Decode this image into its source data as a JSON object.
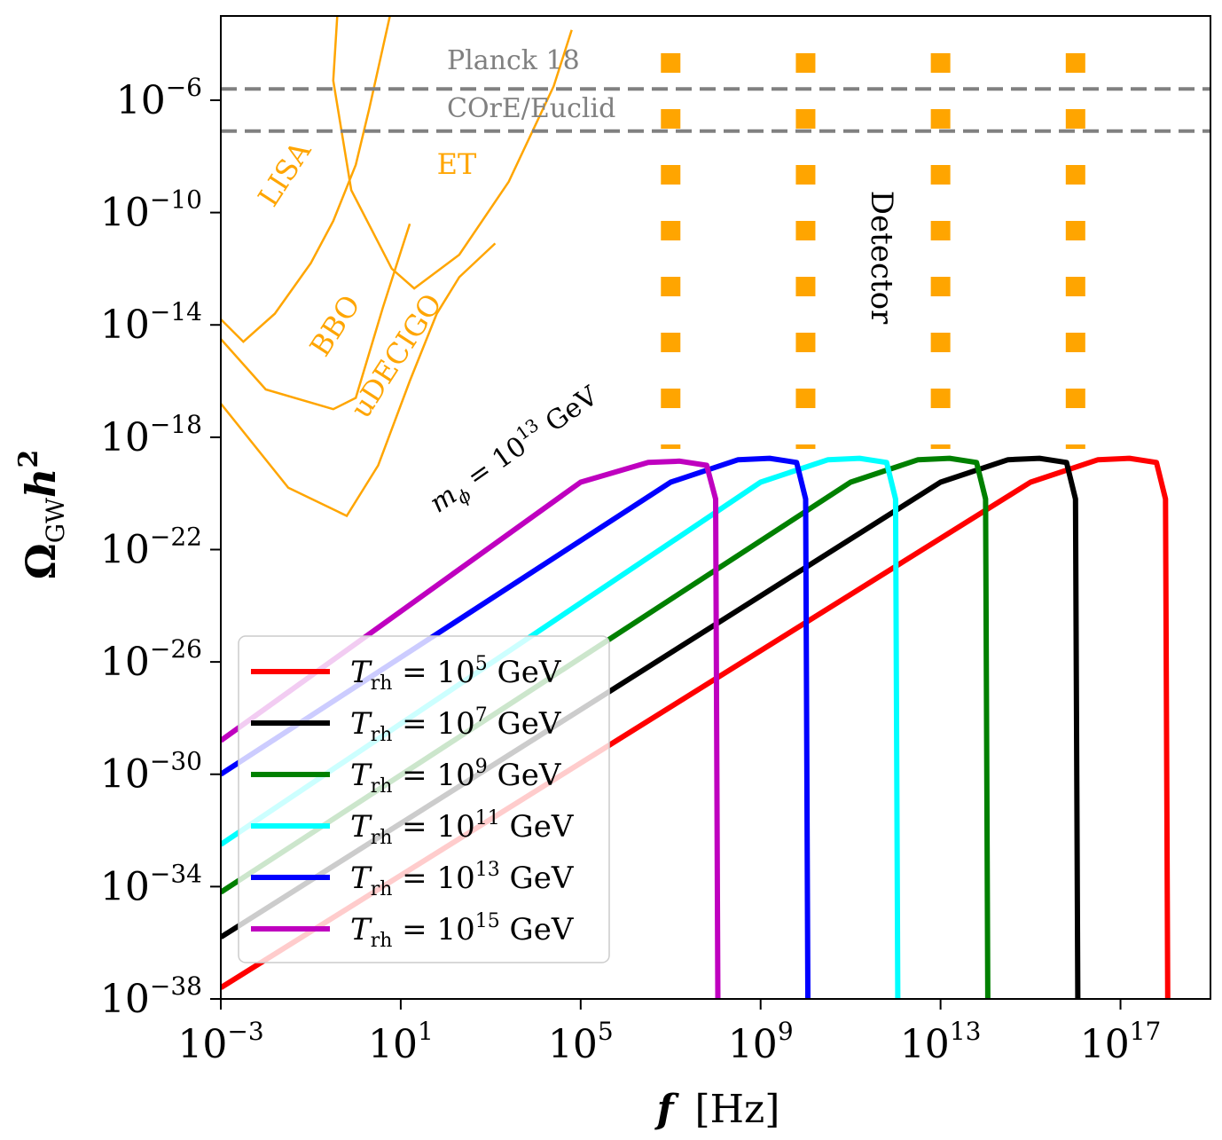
{
  "chart_data": {
    "type": "line",
    "xlabel_main": "f",
    "xlabel_unit": "[Hz]",
    "ylabel_main": "Ω",
    "ylabel_sub": "GW",
    "ylabel_tail": "h",
    "ylabel_sup": "2",
    "x_scale": "log",
    "y_scale": "log",
    "xlim_log10": [
      -3,
      19
    ],
    "ylim_log10": [
      -38,
      -3
    ],
    "x_ticks": [
      {
        "base": "10",
        "exp": "−3",
        "log10": -3
      },
      {
        "base": "10",
        "exp": "1",
        "log10": 1
      },
      {
        "base": "10",
        "exp": "5",
        "log10": 5
      },
      {
        "base": "10",
        "exp": "9",
        "log10": 9
      },
      {
        "base": "10",
        "exp": "13",
        "log10": 13
      },
      {
        "base": "10",
        "exp": "17",
        "log10": 17
      }
    ],
    "y_ticks": [
      {
        "base": "10",
        "exp": "−6",
        "log10": -6
      },
      {
        "base": "10",
        "exp": "−10",
        "log10": -10
      },
      {
        "base": "10",
        "exp": "−14",
        "log10": -14
      },
      {
        "base": "10",
        "exp": "−18",
        "log10": -18
      },
      {
        "base": "10",
        "exp": "−22",
        "log10": -22
      },
      {
        "base": "10",
        "exp": "−26",
        "log10": -26
      },
      {
        "base": "10",
        "exp": "−30",
        "log10": -30
      },
      {
        "base": "10",
        "exp": "−34",
        "log10": -34
      },
      {
        "base": "10",
        "exp": "−38",
        "log10": -38
      }
    ],
    "legend_location": "lower-left",
    "series": [
      {
        "name_T": "T",
        "name_sub": "rh",
        "name_eq": " = 10",
        "name_exp": "5",
        "name_unit": " GeV",
        "color": "#ff0000",
        "points": [
          [
            -3,
            -37.6
          ],
          [
            15.0,
            -19.6
          ],
          [
            16.5,
            -18.8
          ],
          [
            17.2,
            -18.75
          ],
          [
            17.8,
            -18.9
          ],
          [
            18.0,
            -20.2
          ],
          [
            18.05,
            -38.0
          ]
        ]
      },
      {
        "name_T": "T",
        "name_sub": "rh",
        "name_eq": " = 10",
        "name_exp": "7",
        "name_unit": " GeV",
        "color": "#000000",
        "points": [
          [
            -3,
            -35.8
          ],
          [
            13.0,
            -19.6
          ],
          [
            14.5,
            -18.8
          ],
          [
            15.2,
            -18.75
          ],
          [
            15.8,
            -18.9
          ],
          [
            16.0,
            -20.2
          ],
          [
            16.05,
            -38.0
          ]
        ]
      },
      {
        "name_T": "T",
        "name_sub": "rh",
        "name_eq": " = 10",
        "name_exp": "9",
        "name_unit": " GeV",
        "color": "#008000",
        "points": [
          [
            -3,
            -34.2
          ],
          [
            11.0,
            -19.6
          ],
          [
            12.5,
            -18.8
          ],
          [
            13.2,
            -18.75
          ],
          [
            13.8,
            -18.9
          ],
          [
            14.0,
            -20.2
          ],
          [
            14.05,
            -38.0
          ]
        ]
      },
      {
        "name_T": "T",
        "name_sub": "rh",
        "name_eq": " = 10",
        "name_exp": "11",
        "name_unit": " GeV",
        "color": "#00ffff",
        "points": [
          [
            -3,
            -32.5
          ],
          [
            9.0,
            -19.6
          ],
          [
            10.5,
            -18.8
          ],
          [
            11.2,
            -18.75
          ],
          [
            11.8,
            -18.9
          ],
          [
            12.0,
            -20.2
          ],
          [
            12.05,
            -38.0
          ]
        ]
      },
      {
        "name_T": "T",
        "name_sub": "rh",
        "name_eq": " = 10",
        "name_exp": "13",
        "name_unit": " GeV",
        "color": "#0000ff",
        "points": [
          [
            -3,
            -30.0
          ],
          [
            7.0,
            -19.6
          ],
          [
            8.5,
            -18.8
          ],
          [
            9.2,
            -18.75
          ],
          [
            9.8,
            -18.9
          ],
          [
            10.0,
            -20.2
          ],
          [
            10.05,
            -38.0
          ]
        ]
      },
      {
        "name_T": "T",
        "name_sub": "rh",
        "name_eq": " = 10",
        "name_exp": "15",
        "name_unit": " GeV",
        "color": "#bf00bf",
        "points": [
          [
            -3,
            -28.8
          ],
          [
            5.0,
            -19.6
          ],
          [
            6.5,
            -18.9
          ],
          [
            7.2,
            -18.85
          ],
          [
            7.8,
            -19.0
          ],
          [
            8.0,
            -20.2
          ],
          [
            8.05,
            -38.0
          ]
        ]
      }
    ],
    "reference_lines": [
      {
        "label": "Planck 18",
        "y_log10": -5.6,
        "color": "#808080",
        "style": "dashed"
      },
      {
        "label": "COrE/Euclid",
        "y_log10": -7.1,
        "color": "#808080",
        "style": "dashed"
      }
    ],
    "sensitivity_curves": [
      {
        "label": "LISA",
        "color": "#ffa500",
        "points": [
          [
            -3,
            -13.8
          ],
          [
            -2.5,
            -14.6
          ],
          [
            -1.8,
            -13.6
          ],
          [
            -1.0,
            -11.8
          ],
          [
            -0.5,
            -10.3
          ],
          [
            0.0,
            -8.3
          ],
          [
            0.3,
            -6.3
          ],
          [
            0.8,
            -2.7
          ]
        ]
      },
      {
        "label": "BBO",
        "color": "#ffa500",
        "points": [
          [
            -3,
            -14.5
          ],
          [
            -2.0,
            -16.3
          ],
          [
            -0.5,
            -17.0
          ],
          [
            0.0,
            -16.6
          ],
          [
            0.6,
            -13.4
          ],
          [
            1.0,
            -11.4
          ],
          [
            1.2,
            -10.4
          ]
        ]
      },
      {
        "label": "uDECIGO",
        "color": "#ffa500",
        "points": [
          [
            -3,
            -16.8
          ],
          [
            -1.5,
            -19.8
          ],
          [
            -0.2,
            -20.8
          ],
          [
            0.5,
            -19.0
          ],
          [
            1.2,
            -16.0
          ],
          [
            1.8,
            -13.6
          ],
          [
            2.3,
            -12.3
          ],
          [
            3.1,
            -11.1
          ]
        ]
      },
      {
        "label": "ET",
        "color": "#ffa500",
        "points": [
          [
            -0.4,
            -2.7
          ],
          [
            -0.5,
            -5.3
          ],
          [
            -0.1,
            -9.2
          ],
          [
            0.8,
            -12.0
          ],
          [
            1.3,
            -12.7
          ],
          [
            2.3,
            -11.5
          ],
          [
            3.4,
            -8.9
          ],
          [
            4.4,
            -5.5
          ],
          [
            4.8,
            -3.5
          ]
        ]
      }
    ],
    "detector_bands": [
      {
        "x_log10": 7,
        "color": "#ffa500"
      },
      {
        "x_log10": 10,
        "color": "#ffa500"
      },
      {
        "x_log10": 13,
        "color": "#ffa500"
      },
      {
        "x_log10": 16,
        "color": "#ffa500"
      }
    ],
    "annotations": {
      "detector": "Detector",
      "mphi_m": "m",
      "mphi_sub": "ϕ",
      "mphi_eq": " = 10",
      "mphi_exp": "13",
      "mphi_unit": " GeV"
    }
  }
}
